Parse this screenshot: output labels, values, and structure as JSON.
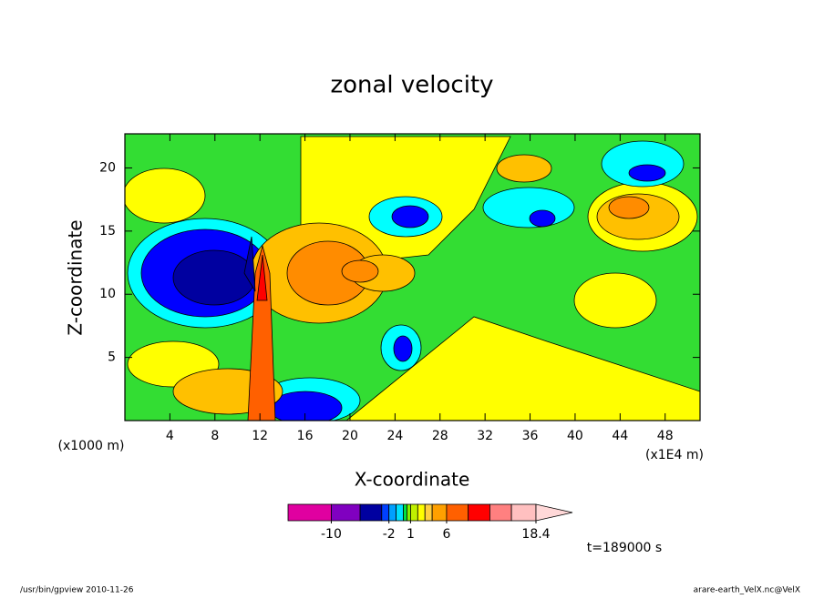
{
  "chart_data": {
    "type": "contour",
    "title": "zonal velocity",
    "x_label": "X-coordinate",
    "y_label": "Z-coordinate",
    "x_unit": "(x1E4 m)",
    "y_unit": "(x1000 m)",
    "xlim": [
      0,
      51.1
    ],
    "xticks": [
      4,
      8,
      12,
      16,
      20,
      24,
      28,
      32,
      36,
      40,
      44,
      48
    ],
    "ylim": [
      0,
      22.7
    ],
    "yticks": [
      5,
      10,
      15,
      20
    ],
    "colorbar": {
      "levels": [
        -16,
        -10,
        -6,
        -3,
        -2,
        -1,
        0,
        0.5,
        1,
        2,
        3,
        4,
        6,
        9,
        12,
        15,
        18.4
      ],
      "colors": [
        "#e000a0",
        "#8000c0",
        "#0000a0",
        "#0040ff",
        "#00a0ff",
        "#00e0ff",
        "#00e040",
        "#80f000",
        "#c0f000",
        "#ffff00",
        "#ffd040",
        "#ffa000",
        "#ff6000",
        "#ff0000",
        "#ff8080",
        "#ffc0c0"
      ],
      "over_color": "#ffd8d8",
      "ticks": [
        -10,
        -2,
        1,
        6,
        18.4
      ]
    },
    "time_label": "t=189000 s",
    "footer_left": "/usr/bin/gpview   2010-11-26",
    "footer_right": "arare-earth_VelX.nc@VelX"
  }
}
